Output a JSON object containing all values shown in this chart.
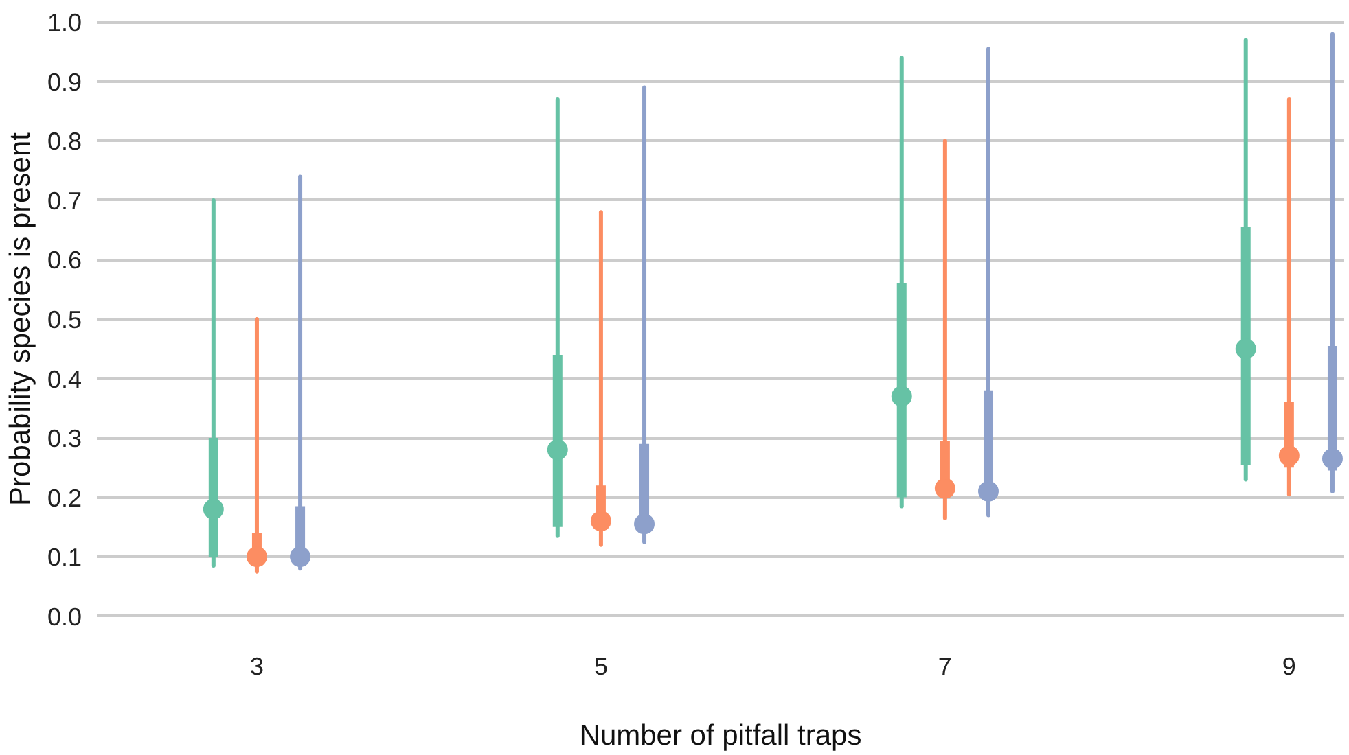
{
  "chart_data": {
    "type": "box",
    "xlabel": "Number of pitfall traps",
    "ylabel": "Probability species is present",
    "categories": [
      "3",
      "5",
      "7",
      "9"
    ],
    "ylim": [
      0,
      1.0
    ],
    "yticks": [
      {
        "value": 0,
        "label": "0.0"
      },
      0.1,
      0.2,
      0.3,
      0.4,
      0.5,
      0.6,
      0.7,
      0.8,
      0.9,
      {
        "value": 1.0,
        "label": "1.0"
      }
    ],
    "grid": "y",
    "series": [
      {
        "color": "#66c2a5",
        "boxes": [
          {
            "low": 0.085,
            "q1": 0.1,
            "median": 0.18,
            "q3": 0.3,
            "high": 0.7
          },
          {
            "low": 0.135,
            "q1": 0.15,
            "median": 0.28,
            "q3": 0.44,
            "high": 0.87
          },
          {
            "low": 0.185,
            "q1": 0.2,
            "median": 0.37,
            "q3": 0.56,
            "high": 0.94
          },
          {
            "low": 0.23,
            "q1": 0.255,
            "median": 0.45,
            "q3": 0.655,
            "high": 0.97
          }
        ]
      },
      {
        "color": "#fc8d62",
        "boxes": [
          {
            "low": 0.075,
            "q1": 0.095,
            "median": 0.1,
            "q3": 0.14,
            "high": 0.5
          },
          {
            "low": 0.12,
            "q1": 0.15,
            "median": 0.16,
            "q3": 0.22,
            "high": 0.68
          },
          {
            "low": 0.165,
            "q1": 0.2,
            "median": 0.215,
            "q3": 0.295,
            "high": 0.8
          },
          {
            "low": 0.205,
            "q1": 0.25,
            "median": 0.27,
            "q3": 0.36,
            "high": 0.87
          }
        ]
      },
      {
        "color": "#8da0cb",
        "boxes": [
          {
            "low": 0.08,
            "q1": 0.09,
            "median": 0.1,
            "q3": 0.185,
            "high": 0.74
          },
          {
            "low": 0.125,
            "q1": 0.15,
            "median": 0.155,
            "q3": 0.29,
            "high": 0.89
          },
          {
            "low": 0.17,
            "q1": 0.2,
            "median": 0.21,
            "q3": 0.38,
            "high": 0.955
          },
          {
            "low": 0.21,
            "q1": 0.245,
            "median": 0.265,
            "q3": 0.455,
            "high": 0.98
          }
        ]
      }
    ]
  }
}
